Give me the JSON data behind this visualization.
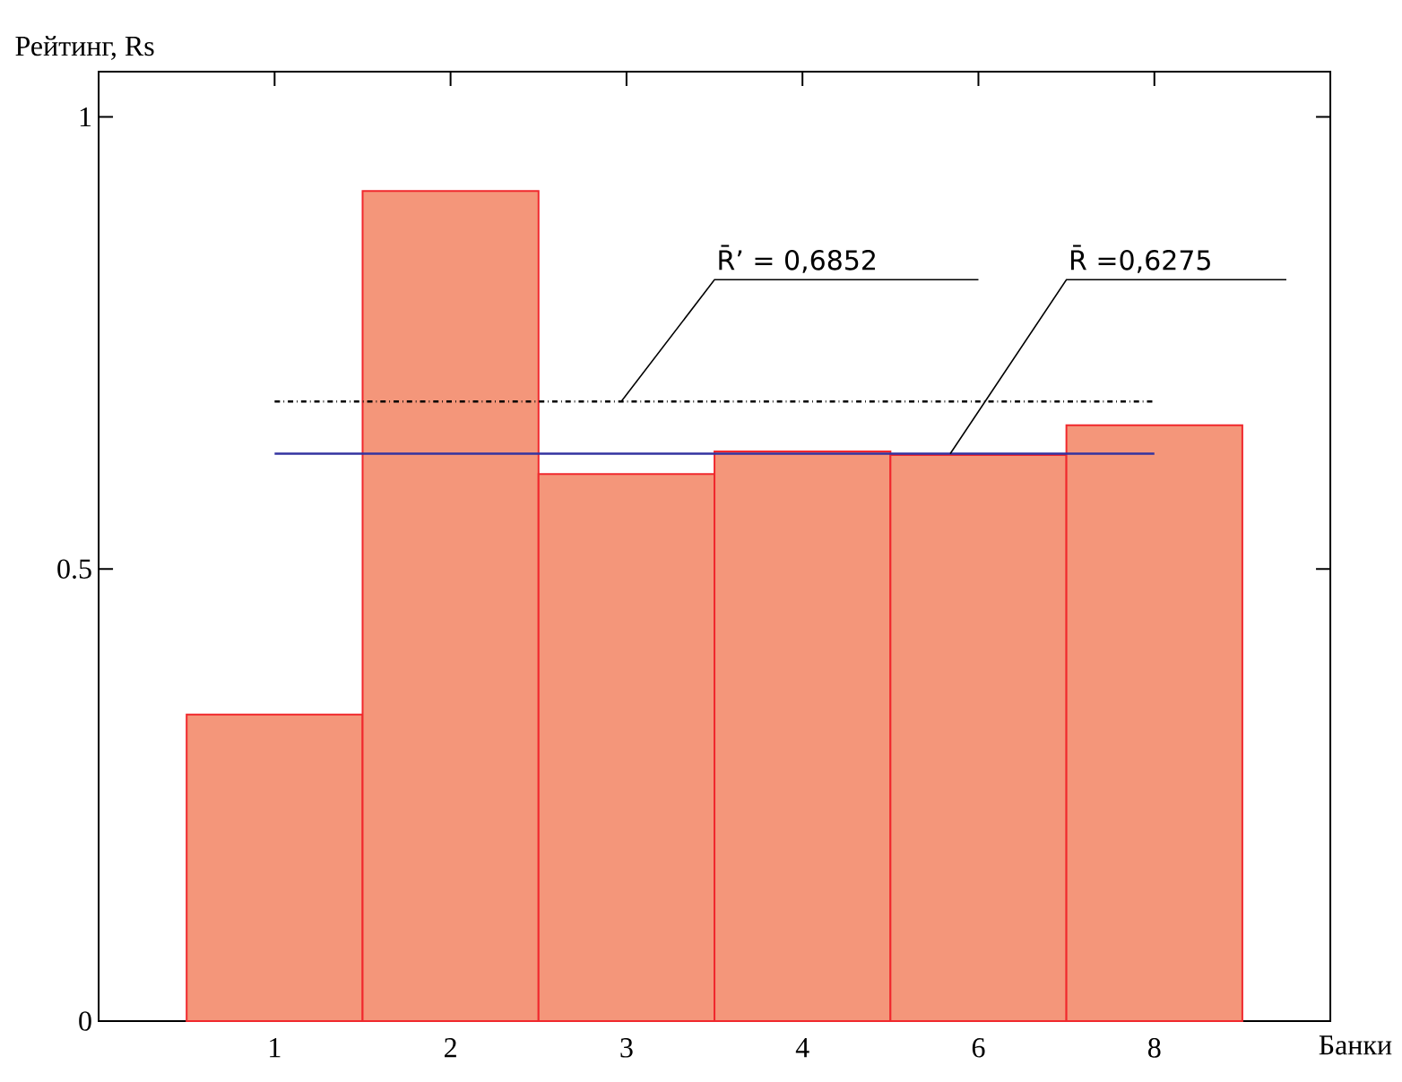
{
  "chart_data": {
    "type": "bar",
    "xlabel": "Банки",
    "ylabel": "Рейтинг, Rs",
    "categories": [
      "1",
      "2",
      "3",
      "4",
      "6",
      "8"
    ],
    "values": [
      0.339,
      0.918,
      0.605,
      0.63,
      0.626,
      0.659
    ],
    "color": "#f4967a",
    "ylim": [
      0,
      1.05
    ],
    "yticks": [
      0,
      0.5,
      1
    ],
    "grid": false,
    "ref_lines": [
      {
        "axis": "y",
        "value": 0.6852,
        "label": "R̄’ = 0,6852",
        "color": "#000000",
        "line_style": "dashdot"
      },
      {
        "axis": "y",
        "value": 0.6275,
        "label": "R̄ =0,6275",
        "color": "#3333a0",
        "line_style": "solid"
      }
    ]
  }
}
